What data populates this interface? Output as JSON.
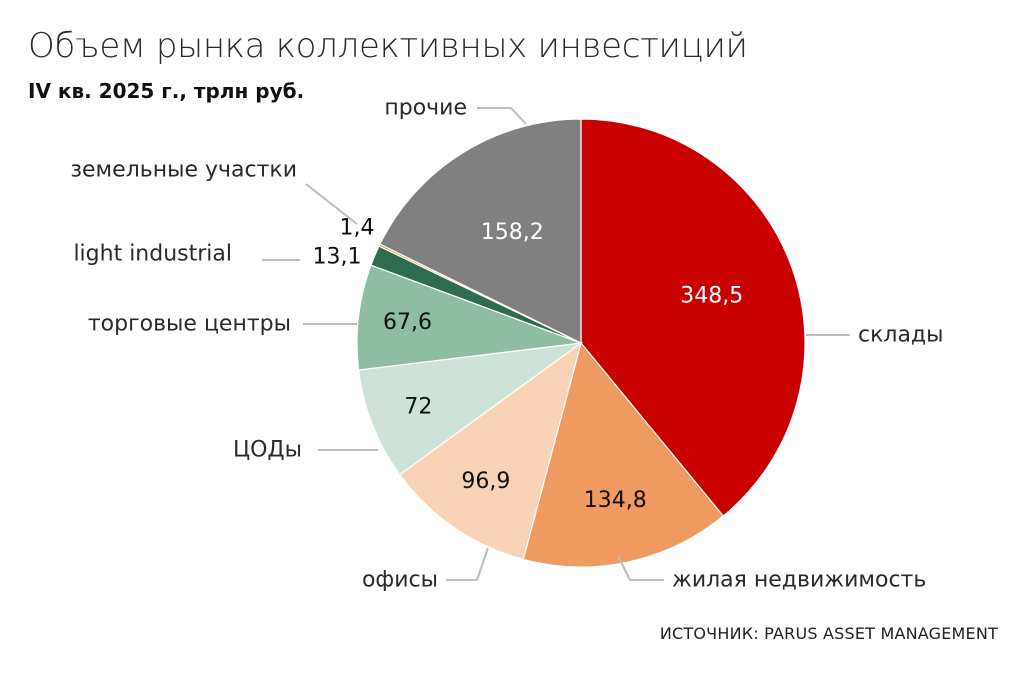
{
  "title": "Объем рынка коллективных инвестиций",
  "subtitle": "IV кв. 2025 г., трлн руб.",
  "source": "ИСТОЧНИК: PARUS ASSET MANAGEMENT",
  "chart_data": {
    "type": "pie",
    "slices": [
      {
        "label": "склады",
        "value": 348.5,
        "value_text": "348,5",
        "color": "#c90000",
        "value_color": "#ffffff"
      },
      {
        "label": "жилая недвижимость",
        "value": 134.8,
        "value_text": "134,8",
        "color": "#ef9a61",
        "value_color": "#111111"
      },
      {
        "label": "офисы",
        "value": 96.9,
        "value_text": "96,9",
        "color": "#f8d3b7",
        "value_color": "#111111"
      },
      {
        "label": "ЦОДы",
        "value": 72,
        "value_text": "72",
        "color": "#cfe2d8",
        "value_color": "#111111"
      },
      {
        "label": "торговые центры",
        "value": 67.6,
        "value_text": "67,6",
        "color": "#8fbda3",
        "value_color": "#111111"
      },
      {
        "label": "light industrial",
        "value": 13.1,
        "value_text": "13,1",
        "color": "#2f6b4f",
        "value_color": "#111111"
      },
      {
        "label": "земельные участки",
        "value": 1.4,
        "value_text": "1,4",
        "color": "#ef8f25",
        "value_color": "#111111"
      },
      {
        "label": "прочие",
        "value": 158.2,
        "value_text": "158,2",
        "color": "#808080",
        "value_color": "#ffffff"
      }
    ]
  }
}
